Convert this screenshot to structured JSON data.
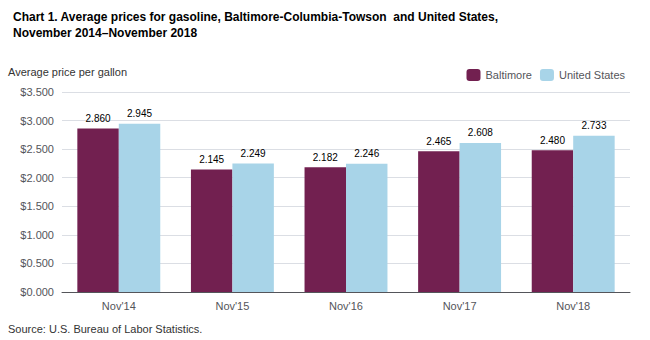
{
  "chart_data": {
    "type": "bar",
    "title": "Chart 1. Average prices for gasoline, Baltimore-Columbia-Towson  and United States,",
    "subtitle": "November 2014–November 2018",
    "ylabel": "Average price per gallon",
    "annotations": [
      "Source: U.S. Bureau of Labor Statistics."
    ],
    "categories": [
      "Nov'14",
      "Nov'15",
      "Nov'16",
      "Nov'17",
      "Nov'18"
    ],
    "series": [
      {
        "name": "Baltimore",
        "color": "#722050",
        "values": [
          2.86,
          2.145,
          2.182,
          2.465,
          2.48
        ],
        "value_labels": [
          "2.860",
          "2.145",
          "2.182",
          "2.465",
          "2.480"
        ]
      },
      {
        "name": "United States",
        "color": "#A8D4E8",
        "values": [
          2.945,
          2.249,
          2.246,
          2.608,
          2.733
        ],
        "value_labels": [
          "2.945",
          "2.249",
          "2.246",
          "2.608",
          "2.733"
        ]
      }
    ],
    "ylim": [
      0,
      3.5
    ],
    "yticks": [
      {
        "value": 0.0,
        "label": "$0.000"
      },
      {
        "value": 0.5,
        "label": "$0.500"
      },
      {
        "value": 1.0,
        "label": "$1.000"
      },
      {
        "value": 1.5,
        "label": "$1.500"
      },
      {
        "value": 2.0,
        "label": "$2.000"
      },
      {
        "value": 2.5,
        "label": "$2.500"
      },
      {
        "value": 3.0,
        "label": "$3.000"
      },
      {
        "value": 3.5,
        "label": "$3.500"
      }
    ],
    "grid": true,
    "legend": "upper right",
    "data_labels": true
  }
}
